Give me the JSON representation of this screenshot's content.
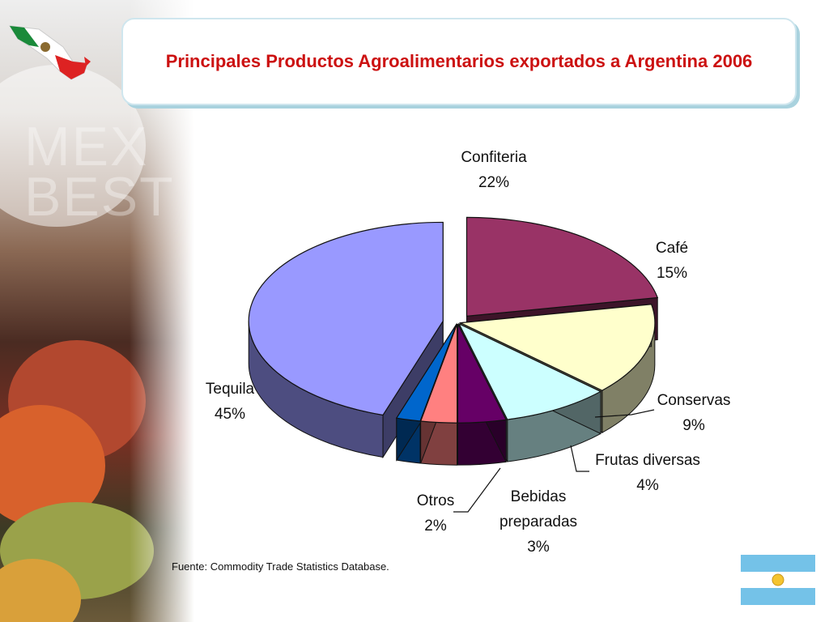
{
  "title": "Principales Productos Agroalimentarios exportados a Argentina 2006",
  "logo_text": [
    "MEX",
    "BEST"
  ],
  "source": "Fuente: Commodity Trade Statistics Database.",
  "chart_data": {
    "type": "pie",
    "title": "Principales Productos Agroalimentarios exportados a Argentina 2006",
    "slices": [
      {
        "name": "Confiteria",
        "pct": 22,
        "color": "#993366"
      },
      {
        "name": "Café",
        "pct": 15,
        "color": "#ffffcc"
      },
      {
        "name": "Conservas",
        "pct": 9,
        "color": "#ccffff"
      },
      {
        "name": "Frutas diversas",
        "pct": 4,
        "color": "#660066"
      },
      {
        "name": "Bebidas preparadas",
        "pct": 3,
        "color": "#ff8080"
      },
      {
        "name": "Otros",
        "pct": 2,
        "color": "#0066cc"
      },
      {
        "name": "Tequila",
        "pct": 45,
        "color": "#9999ff"
      }
    ],
    "label_lines": {
      "Confiteria": [
        "Confiteria",
        "22%"
      ],
      "Café": [
        "Café",
        "15%"
      ],
      "Conservas": [
        "Conservas",
        "9%"
      ],
      "Frutas diversas": [
        "Frutas diversas",
        "4%"
      ],
      "Bebidas preparadas": [
        "Bebidas",
        "preparadas",
        "3%"
      ],
      "Otros": [
        "Otros",
        "2%"
      ],
      "Tequila": [
        "Tequila",
        "45%"
      ]
    },
    "exploded": true,
    "style": "3d"
  },
  "colors": {
    "title_red": "#cc1111",
    "title_border": "#a9d2de"
  },
  "icons": {
    "mexico_flag": "mexico-map-flag-icon",
    "argentina_flag": "argentina-flag-icon"
  }
}
